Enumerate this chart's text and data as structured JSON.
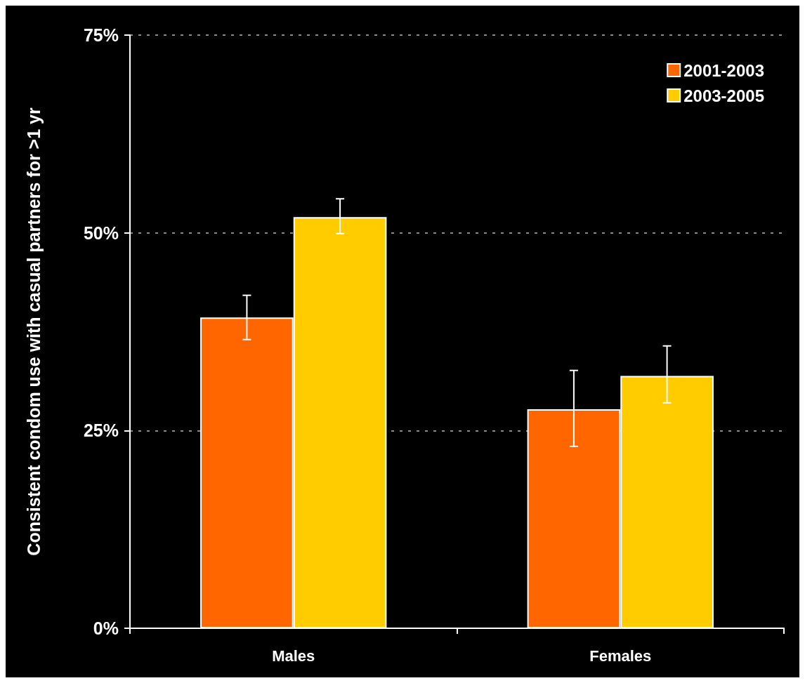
{
  "chart_data": {
    "type": "bar",
    "ylabel": "Consistent condom use with casual partners for >1 yr",
    "categories": [
      "Males",
      "Females"
    ],
    "series": [
      {
        "name": "2001-2003",
        "color": "#ff6600",
        "values": [
          39.3,
          27.7
        ],
        "errors": [
          [
            36.5,
            42.1
          ],
          [
            23.0,
            32.6
          ]
        ]
      },
      {
        "name": "2003-2005",
        "color": "#ffcc00",
        "values": [
          52.0,
          31.9
        ],
        "errors": [
          [
            49.9,
            54.3
          ],
          [
            28.5,
            35.7
          ]
        ]
      }
    ],
    "ylim": [
      0,
      75
    ],
    "yticks": [
      {
        "value": 0,
        "label": "0%"
      },
      {
        "value": 25,
        "label": "25%"
      },
      {
        "value": 50,
        "label": "50%"
      },
      {
        "value": 75,
        "label": "75%"
      }
    ],
    "grid": "y",
    "legend": "top right"
  }
}
